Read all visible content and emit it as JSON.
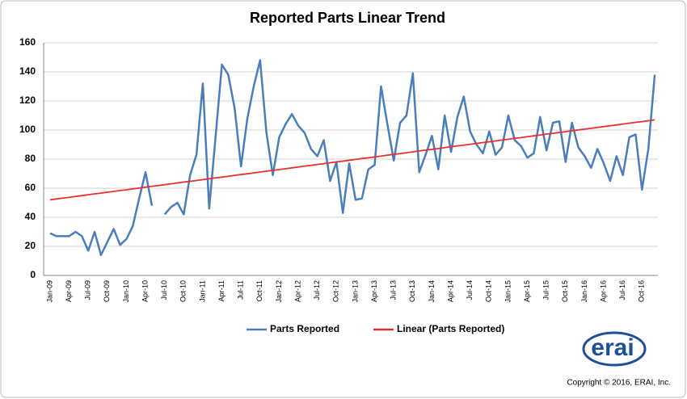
{
  "chart_data": {
    "type": "line",
    "title": "Reported Parts Linear Trend",
    "categories": [
      "Jan-09",
      null,
      null,
      "Apr-09",
      null,
      null,
      "Jul-09",
      null,
      null,
      "Oct-09",
      null,
      null,
      "Jan-10",
      null,
      null,
      "Apr-10",
      null,
      null,
      "Jul-10",
      null,
      null,
      "Oct-10",
      null,
      null,
      "Jan-11",
      null,
      null,
      "Apr-11",
      null,
      null,
      "Jul-11",
      null,
      null,
      "Oct-11",
      null,
      null,
      "Jan-12",
      null,
      null,
      "Apr-12",
      null,
      null,
      "Jul-12",
      null,
      null,
      "Oct-12",
      null,
      null,
      "Jan-13",
      null,
      null,
      "Apr-13",
      null,
      null,
      "Jul-13",
      null,
      null,
      "Oct-13",
      null,
      null,
      "Jan-14",
      null,
      null,
      "Apr-14",
      null,
      null,
      "Jul-14",
      null,
      null,
      "Oct-14",
      null,
      null,
      "Jan-15",
      null,
      null,
      "Apr-15",
      null,
      null,
      "Jul-15",
      null,
      null,
      "Oct-15",
      null,
      null,
      "Jan-16",
      null,
      null,
      "Apr-16",
      null,
      null,
      "Jul-16",
      null,
      null,
      "Oct-16",
      null,
      null
    ],
    "series": [
      {
        "name": "Parts Reported",
        "color": "#4a7ebb",
        "values": [
          29,
          27,
          27,
          27,
          30,
          27,
          17,
          30,
          14,
          23,
          32,
          21,
          25,
          34,
          53,
          71,
          48,
          null,
          42,
          47,
          50,
          42,
          69,
          83,
          132,
          46,
          95,
          145,
          138,
          115,
          75,
          108,
          130,
          148,
          98,
          69,
          95,
          104,
          111,
          103,
          98,
          87,
          82,
          93,
          65,
          78,
          43,
          77,
          52,
          53,
          73,
          76,
          130,
          104,
          79,
          105,
          110,
          139,
          71,
          83,
          96,
          73,
          110,
          85,
          109,
          123,
          99,
          90,
          84,
          99,
          83,
          88,
          110,
          93,
          89,
          81,
          84,
          109,
          86,
          105,
          106,
          78,
          105,
          88,
          82,
          74,
          87,
          77,
          65,
          82,
          69,
          95,
          97,
          59,
          87,
          138
        ]
      },
      {
        "name": "Linear (Parts Reported)",
        "color": "#e8312f",
        "values": [
          52,
          52.6,
          53.2,
          53.7,
          54.3,
          54.9,
          55.5,
          56.1,
          56.6,
          57.2,
          57.8,
          58.4,
          58.9,
          59.5,
          60.1,
          60.7,
          61.3,
          61.8,
          62.4,
          63,
          63.6,
          64.2,
          64.7,
          65.3,
          65.9,
          66.5,
          67.1,
          67.6,
          68.2,
          68.8,
          69.4,
          69.9,
          70.5,
          71.1,
          71.7,
          72.3,
          72.8,
          73.4,
          74,
          74.6,
          75.2,
          75.7,
          76.3,
          76.9,
          77.5,
          78.1,
          78.6,
          79.2,
          79.8,
          80.4,
          80.9,
          81.5,
          82.1,
          82.7,
          83.3,
          83.8,
          84.4,
          85,
          85.6,
          86.2,
          86.7,
          87.3,
          87.9,
          88.5,
          89.1,
          89.6,
          90.2,
          90.8,
          91.4,
          91.9,
          92.5,
          93.1,
          93.7,
          94.3,
          94.8,
          95.4,
          96,
          96.6,
          97.2,
          97.7,
          98.3,
          98.9,
          99.5,
          100.1,
          100.6,
          101.2,
          101.8,
          102.4,
          102.9,
          103.5,
          104.1,
          104.7,
          105.3,
          105.8,
          106.4,
          107
        ]
      }
    ],
    "ylim": [
      0,
      160
    ],
    "yticks": [
      0,
      20,
      40,
      60,
      80,
      100,
      120,
      140,
      160
    ],
    "grid": true,
    "legend": "bottom",
    "logo": "erai",
    "copyright": "Copyright © 2016, ERAI, Inc."
  }
}
